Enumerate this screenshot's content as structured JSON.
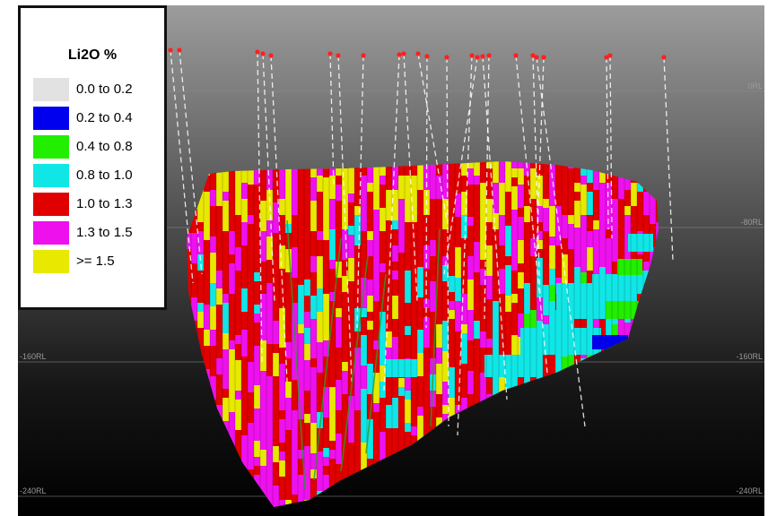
{
  "legend": {
    "title": "Li2O %",
    "items": [
      {
        "label": "0.0 to 0.2",
        "color": "#e2e2e2"
      },
      {
        "label": "0.2 to 0.4",
        "color": "#0000ee"
      },
      {
        "label": "0.4 to 0.8",
        "color": "#22ee00"
      },
      {
        "label": "0.8 to 1.0",
        "color": "#11e6e6"
      },
      {
        "label": "1.0 to 1.3",
        "color": "#e00000"
      },
      {
        "label": "1.3 to 1.5",
        "color": "#ee11ee"
      },
      {
        "label": ">= 1.5",
        "color": "#e8e800"
      }
    ]
  },
  "reference_levels": [
    {
      "label": "0RL",
      "sides": [
        "right"
      ]
    },
    {
      "label": "-80RL",
      "sides": [
        "right"
      ]
    },
    {
      "label": "-160RL",
      "sides": [
        "left",
        "right"
      ]
    },
    {
      "label": "-240RL",
      "sides": [
        "left",
        "right"
      ]
    }
  ],
  "colors": {
    "background_top": "#969696",
    "background_bottom": "#000000",
    "collar": "#ff2020",
    "drill_trace": "#ffffff"
  }
}
